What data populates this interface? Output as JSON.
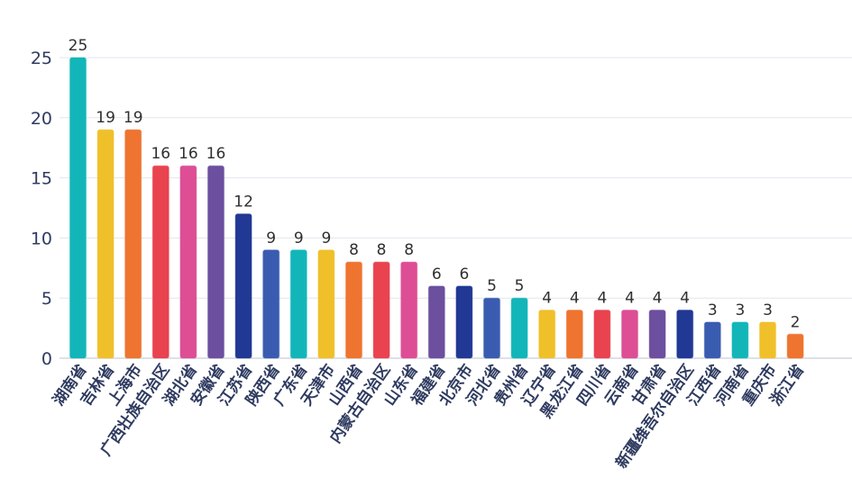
{
  "chart_data": {
    "type": "bar",
    "title": "",
    "xlabel": "",
    "ylabel": "",
    "ylim": [
      0,
      25
    ],
    "yticks": [
      0,
      5,
      10,
      15,
      20,
      25
    ],
    "grid": true,
    "categories": [
      "湖南省",
      "吉林省",
      "上海市",
      "广西壮族自治区",
      "湖北省",
      "安徽省",
      "江苏省",
      "陕西省",
      "广东省",
      "天津市",
      "山西省",
      "内蒙古自治区",
      "山东省",
      "福建省",
      "北京市",
      "河北省",
      "贵州省",
      "辽宁省",
      "黑龙江省",
      "四川省",
      "云南省",
      "甘肃省",
      "新疆维吾尔自治区",
      "江西省",
      "河南省",
      "重庆市",
      "浙江省"
    ],
    "values": [
      25,
      19,
      19,
      16,
      16,
      16,
      12,
      9,
      9,
      9,
      8,
      8,
      8,
      6,
      6,
      5,
      5,
      4,
      4,
      4,
      4,
      4,
      4,
      3,
      3,
      3,
      2
    ],
    "colors": [
      "#12b6b9",
      "#f0c02a",
      "#ee7430",
      "#e8434f",
      "#dd4e95",
      "#6c4f9e",
      "#213894",
      "#3a5cb0",
      "#12b6b9",
      "#f0c02a",
      "#ee7430",
      "#e8434f",
      "#dd4e95",
      "#6c4f9e",
      "#213894",
      "#3a5cb0",
      "#12b6b9",
      "#f0c02a",
      "#ee7430",
      "#e8434f",
      "#dd4e95",
      "#6c4f9e",
      "#213894",
      "#3a5cb0",
      "#12b6b9",
      "#f0c02a",
      "#ee7430"
    ]
  }
}
